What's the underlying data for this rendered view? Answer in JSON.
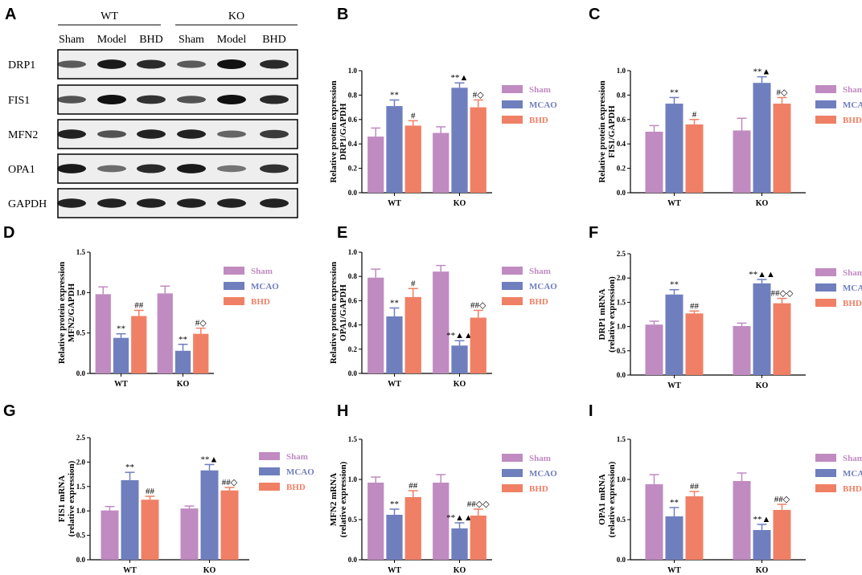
{
  "figure": {
    "blot": {
      "letter": "A",
      "groups": [
        {
          "label": "WT",
          "lanes": [
            "Sham",
            "Model",
            "BHD"
          ]
        },
        {
          "label": "KO",
          "lanes": [
            "Sham",
            "Model",
            "BHD"
          ]
        }
      ],
      "rows": [
        {
          "protein": "DRP1",
          "intensity": [
            0.55,
            0.95,
            0.85,
            0.55,
            1.0,
            0.85
          ]
        },
        {
          "protein": "FIS1",
          "intensity": [
            0.6,
            1.0,
            0.8,
            0.6,
            1.0,
            0.85
          ]
        },
        {
          "protein": "MFN2",
          "intensity": [
            0.9,
            0.6,
            0.9,
            0.9,
            0.5,
            0.75
          ]
        },
        {
          "protein": "OPA1",
          "intensity": [
            0.95,
            0.45,
            0.85,
            0.95,
            0.4,
            0.8
          ]
        },
        {
          "protein": "GAPDH",
          "intensity": [
            0.9,
            0.9,
            0.9,
            0.9,
            0.9,
            0.9
          ]
        }
      ]
    },
    "colors": {
      "Sham": "#c08bc1",
      "MCAO": "#6f7fbe",
      "BHD": "#f08065"
    }
  },
  "chart_data": [
    {
      "letter": "B",
      "type": "bar",
      "ylabel": [
        "Relative protein expression",
        "DRP1/GAPDH"
      ],
      "categories": [
        "WT",
        "KO"
      ],
      "ylim": [
        0,
        1.0
      ],
      "yticks": [
        0,
        0.2,
        0.4,
        0.6,
        0.8,
        1.0
      ],
      "tick_labels": [
        "0.0",
        "0.2",
        "0.4",
        "0.6",
        "0.8",
        "1.0"
      ],
      "legend": [
        "Sham",
        "MCAO",
        "BHD"
      ],
      "series": [
        {
          "name": "Sham",
          "values": [
            0.46,
            0.49
          ],
          "errors": [
            0.07,
            0.05
          ],
          "annotations": [
            "",
            ""
          ]
        },
        {
          "name": "MCAO",
          "values": [
            0.71,
            0.86
          ],
          "errors": [
            0.05,
            0.04
          ],
          "annotations": [
            "**",
            "**▲"
          ]
        },
        {
          "name": "BHD",
          "values": [
            0.55,
            0.7
          ],
          "errors": [
            0.04,
            0.06
          ],
          "annotations": [
            "#",
            "#◇"
          ]
        }
      ]
    },
    {
      "letter": "C",
      "type": "bar",
      "ylabel": [
        "Relative protein expression",
        "FIS1/GAPDH"
      ],
      "categories": [
        "WT",
        "KO"
      ],
      "ylim": [
        0,
        1.0
      ],
      "yticks": [
        0,
        0.2,
        0.4,
        0.6,
        0.8,
        1.0
      ],
      "tick_labels": [
        "0.0",
        "0.2",
        "0.4",
        "0.6",
        "0.8",
        "1.0"
      ],
      "legend": [
        "Sham",
        "MCAO",
        "BHD"
      ],
      "series": [
        {
          "name": "Sham",
          "values": [
            0.5,
            0.51
          ],
          "errors": [
            0.05,
            0.1
          ],
          "annotations": [
            "",
            ""
          ]
        },
        {
          "name": "MCAO",
          "values": [
            0.73,
            0.9
          ],
          "errors": [
            0.05,
            0.05
          ],
          "annotations": [
            "**",
            "**▲"
          ]
        },
        {
          "name": "BHD",
          "values": [
            0.56,
            0.73
          ],
          "errors": [
            0.04,
            0.05
          ],
          "annotations": [
            "#",
            "#◇"
          ]
        }
      ]
    },
    {
      "letter": "D",
      "type": "bar",
      "ylabel": [
        "Relative protein expression",
        "MFN2/GAPDH"
      ],
      "categories": [
        "WT",
        "KO"
      ],
      "ylim": [
        0,
        1.5
      ],
      "yticks": [
        0,
        0.5,
        1.0,
        1.5
      ],
      "tick_labels": [
        "0.0",
        "0.5",
        "1.0",
        "1.5"
      ],
      "legend": [
        "Sham",
        "MCAO",
        "BHD"
      ],
      "series": [
        {
          "name": "Sham",
          "values": [
            0.98,
            0.99
          ],
          "errors": [
            0.09,
            0.09
          ],
          "annotations": [
            "",
            ""
          ]
        },
        {
          "name": "MCAO",
          "values": [
            0.44,
            0.28
          ],
          "errors": [
            0.05,
            0.08
          ],
          "annotations": [
            "**",
            "**"
          ]
        },
        {
          "name": "BHD",
          "values": [
            0.71,
            0.49
          ],
          "errors": [
            0.07,
            0.07
          ],
          "annotations": [
            "##",
            "#◇"
          ]
        }
      ]
    },
    {
      "letter": "E",
      "type": "bar",
      "ylabel": [
        "Relative protein expression",
        "OPA1/GAPDH"
      ],
      "categories": [
        "WT",
        "KO"
      ],
      "ylim": [
        0,
        1.0
      ],
      "yticks": [
        0,
        0.2,
        0.4,
        0.6,
        0.8,
        1.0
      ],
      "tick_labels": [
        "0.0",
        "0.2",
        "0.4",
        "0.6",
        "0.8",
        "1.0"
      ],
      "legend": [
        "Sham",
        "MCAO",
        "BHD"
      ],
      "series": [
        {
          "name": "Sham",
          "values": [
            0.79,
            0.84
          ],
          "errors": [
            0.07,
            0.05
          ],
          "annotations": [
            "",
            ""
          ]
        },
        {
          "name": "MCAO",
          "values": [
            0.47,
            0.23
          ],
          "errors": [
            0.07,
            0.04
          ],
          "annotations": [
            "**",
            "**▲▲"
          ]
        },
        {
          "name": "BHD",
          "values": [
            0.63,
            0.46
          ],
          "errors": [
            0.07,
            0.06
          ],
          "annotations": [
            "#",
            "##◇"
          ]
        }
      ]
    },
    {
      "letter": "F",
      "type": "bar",
      "ylabel": [
        "DRP1 mRNA",
        "(relative expression)"
      ],
      "categories": [
        "WT",
        "KO"
      ],
      "ylim": [
        0,
        2.5
      ],
      "yticks": [
        0,
        0.5,
        1.0,
        1.5,
        2.0,
        2.5
      ],
      "tick_labels": [
        "0.0",
        "0.5",
        "1.0",
        "1.5",
        "2.0",
        "2.5"
      ],
      "legend": [
        "Sham",
        "MCAO",
        "BHD"
      ],
      "series": [
        {
          "name": "Sham",
          "values": [
            1.04,
            1.01
          ],
          "errors": [
            0.07,
            0.06
          ],
          "annotations": [
            "",
            ""
          ]
        },
        {
          "name": "MCAO",
          "values": [
            1.66,
            1.89
          ],
          "errors": [
            0.1,
            0.08
          ],
          "annotations": [
            "**",
            "**▲▲"
          ]
        },
        {
          "name": "BHD",
          "values": [
            1.27,
            1.48
          ],
          "errors": [
            0.05,
            0.1
          ],
          "annotations": [
            "##",
            "##◇◇"
          ]
        }
      ]
    },
    {
      "letter": "G",
      "type": "bar",
      "ylabel": [
        "FIS1 mRNA",
        "(relative expression)"
      ],
      "categories": [
        "WT",
        "KO"
      ],
      "ylim": [
        0,
        2.5
      ],
      "yticks": [
        0,
        0.5,
        1.0,
        1.5,
        2.0,
        2.5
      ],
      "tick_labels": [
        "0.0",
        "0.5",
        "1.0",
        "1.5",
        "2.0",
        "2.5"
      ],
      "legend": [
        "Sham",
        "MCAO",
        "BHD"
      ],
      "series": [
        {
          "name": "Sham",
          "values": [
            1.01,
            1.05
          ],
          "errors": [
            0.08,
            0.05
          ],
          "annotations": [
            "",
            ""
          ]
        },
        {
          "name": "MCAO",
          "values": [
            1.63,
            1.83
          ],
          "errors": [
            0.16,
            0.12
          ],
          "annotations": [
            "**",
            "**▲"
          ]
        },
        {
          "name": "BHD",
          "values": [
            1.23,
            1.42
          ],
          "errors": [
            0.07,
            0.06
          ],
          "annotations": [
            "##",
            "##◇"
          ]
        }
      ]
    },
    {
      "letter": "H",
      "type": "bar",
      "ylabel": [
        "MFN2 mRNA",
        "(relative expression)"
      ],
      "categories": [
        "WT",
        "KO"
      ],
      "ylim": [
        0,
        1.5
      ],
      "yticks": [
        0,
        0.5,
        1.0,
        1.5
      ],
      "tick_labels": [
        "0.0",
        "0.5",
        "1.0",
        "1.5"
      ],
      "legend": [
        "Sham",
        "MCAO",
        "BHD"
      ],
      "series": [
        {
          "name": "Sham",
          "values": [
            0.96,
            0.96
          ],
          "errors": [
            0.07,
            0.1
          ],
          "annotations": [
            "",
            ""
          ]
        },
        {
          "name": "MCAO",
          "values": [
            0.56,
            0.39
          ],
          "errors": [
            0.07,
            0.07
          ],
          "annotations": [
            "**",
            "**▲▲"
          ]
        },
        {
          "name": "BHD",
          "values": [
            0.78,
            0.55
          ],
          "errors": [
            0.08,
            0.08
          ],
          "annotations": [
            "##",
            "##◇◇"
          ]
        }
      ]
    },
    {
      "letter": "I",
      "type": "bar",
      "ylabel": [
        "OPA1 mRNA",
        "(relative expression)"
      ],
      "categories": [
        "WT",
        "KO"
      ],
      "ylim": [
        0,
        1.5
      ],
      "yticks": [
        0,
        0.5,
        1.0,
        1.5
      ],
      "tick_labels": [
        "0.0",
        "0.5",
        "1.0",
        "1.5"
      ],
      "legend": [
        "Sham",
        "MCAO",
        "BHD"
      ],
      "series": [
        {
          "name": "Sham",
          "values": [
            0.94,
            0.98
          ],
          "errors": [
            0.12,
            0.1
          ],
          "annotations": [
            "",
            ""
          ]
        },
        {
          "name": "MCAO",
          "values": [
            0.54,
            0.37
          ],
          "errors": [
            0.11,
            0.07
          ],
          "annotations": [
            "**",
            "**▲"
          ]
        },
        {
          "name": "BHD",
          "values": [
            0.79,
            0.62
          ],
          "errors": [
            0.06,
            0.07
          ],
          "annotations": [
            "##",
            "##◇"
          ]
        }
      ]
    }
  ]
}
